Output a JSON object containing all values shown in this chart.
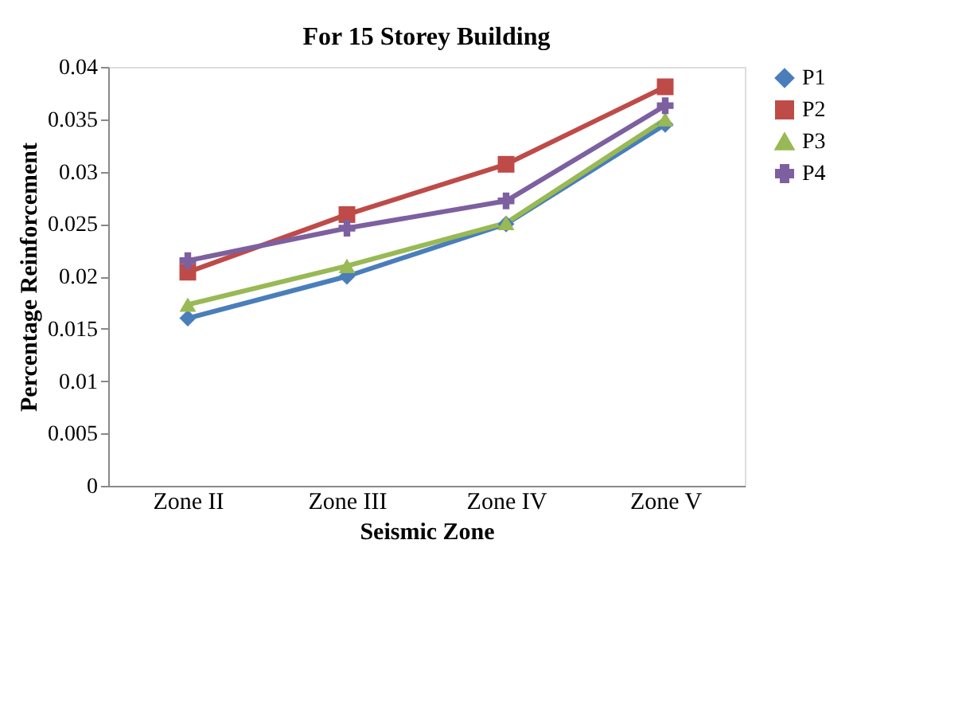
{
  "chart_data": {
    "type": "line",
    "title": "For 15 Storey Building",
    "xlabel": "Seismic Zone",
    "ylabel": "Percentage Reinforcement",
    "categories": [
      "Zone II",
      "Zone III",
      "Zone IV",
      "Zone V"
    ],
    "series": [
      {
        "name": "P1",
        "color": "#4a7ebb",
        "marker": "diamond",
        "values": [
          0.016,
          0.02,
          0.025,
          0.0345
        ]
      },
      {
        "name": "P2",
        "color": "#be4b48",
        "marker": "square",
        "values": [
          0.0204,
          0.0259,
          0.0307,
          0.0381
        ]
      },
      {
        "name": "P3",
        "color": "#98b954",
        "marker": "triangle",
        "values": [
          0.0173,
          0.021,
          0.0251,
          0.035
        ]
      },
      {
        "name": "P4",
        "color": "#7d60a0",
        "marker": "cross",
        "values": [
          0.0215,
          0.0246,
          0.0272,
          0.0363
        ]
      }
    ],
    "ylim": [
      0,
      0.04
    ],
    "yticks": [
      0,
      0.005,
      0.01,
      0.015,
      0.02,
      0.025,
      0.03,
      0.035,
      0.04
    ],
    "grid": false,
    "legend": "right",
    "line_style": "solid"
  }
}
